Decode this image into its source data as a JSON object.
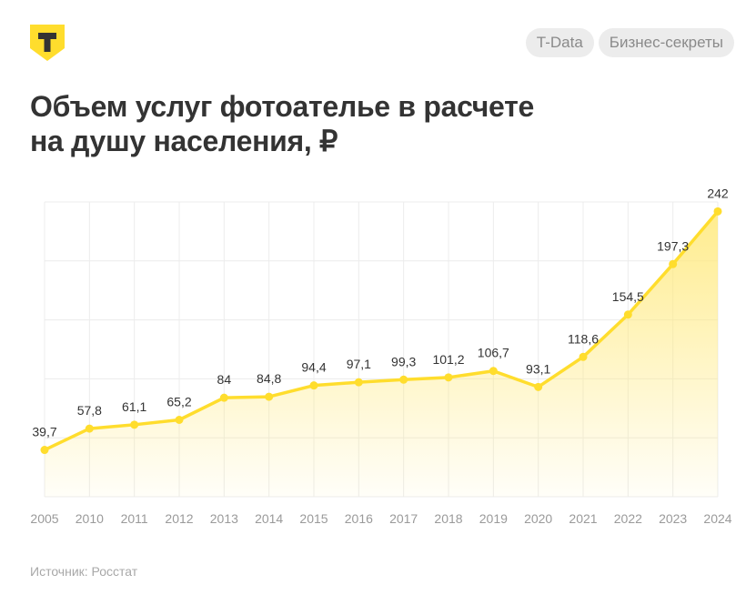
{
  "header": {
    "logo_letter": "Т",
    "tags": [
      "T-Data",
      "Бизнес-секреты"
    ]
  },
  "title_lines": [
    "Объем услуг фотоателье в расчете",
    "на душу населения, ₽"
  ],
  "source": "Источник: Росстат",
  "colors": {
    "line": "#ffdd2d",
    "fill_top": "#ffe97a",
    "grid": "#ececec",
    "label": "#333333",
    "tick": "#9a9a9a"
  },
  "chart_data": {
    "type": "area",
    "title": "Объем услуг фотоателье в расчете на душу населения, ₽",
    "categories": [
      "2005",
      "2010",
      "2011",
      "2012",
      "2013",
      "2014",
      "2015",
      "2016",
      "2017",
      "2018",
      "2019",
      "2020",
      "2021",
      "2022",
      "2023",
      "2024"
    ],
    "values": [
      39.7,
      57.8,
      61.1,
      65.2,
      84,
      84.8,
      94.4,
      97.1,
      99.3,
      101.2,
      106.7,
      93.1,
      118.6,
      154.5,
      197.3,
      242
    ],
    "value_labels": [
      "39,7",
      "57,8",
      "61,1",
      "65,2",
      "84",
      "84,8",
      "94,4",
      "97,1",
      "99,3",
      "101,2",
      "106,7",
      "93,1",
      "118,6",
      "154,5",
      "197,3",
      "242"
    ],
    "ylim": [
      0,
      250
    ],
    "ygrid_step": 50,
    "grid": true,
    "xlabel": "",
    "ylabel": ""
  }
}
